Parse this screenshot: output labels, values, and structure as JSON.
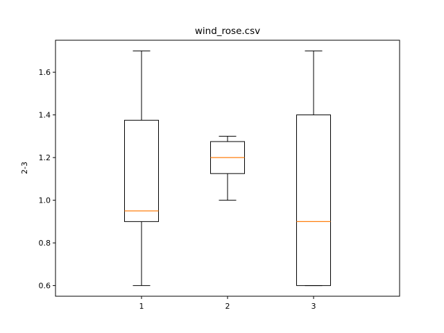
{
  "chart_data": {
    "type": "box",
    "title": "wind_rose.csv",
    "xlabel": "",
    "ylabel": "2-3",
    "ylim": [
      0.55,
      1.75
    ],
    "yticks": [
      0.6,
      0.8,
      1.0,
      1.2,
      1.4,
      1.6
    ],
    "ytick_labels": [
      "0.6",
      "0.8",
      "1.0",
      "1.2",
      "1.4",
      "1.6"
    ],
    "categories": [
      "1",
      "2",
      "3"
    ],
    "boxes": [
      {
        "label": "1",
        "whisker_low": 0.6,
        "q1": 0.9,
        "median": 0.95,
        "q3": 1.375,
        "whisker_high": 1.7
      },
      {
        "label": "2",
        "whisker_low": 1.0,
        "q1": 1.125,
        "median": 1.2,
        "q3": 1.275,
        "whisker_high": 1.3
      },
      {
        "label": "3",
        "whisker_low": 0.6,
        "q1": 0.6,
        "median": 0.9,
        "q3": 1.4,
        "whisker_high": 1.7
      }
    ],
    "grid": false,
    "colors": {
      "box": "#000000",
      "median": "#ff7f0e",
      "background": "#ffffff"
    }
  }
}
